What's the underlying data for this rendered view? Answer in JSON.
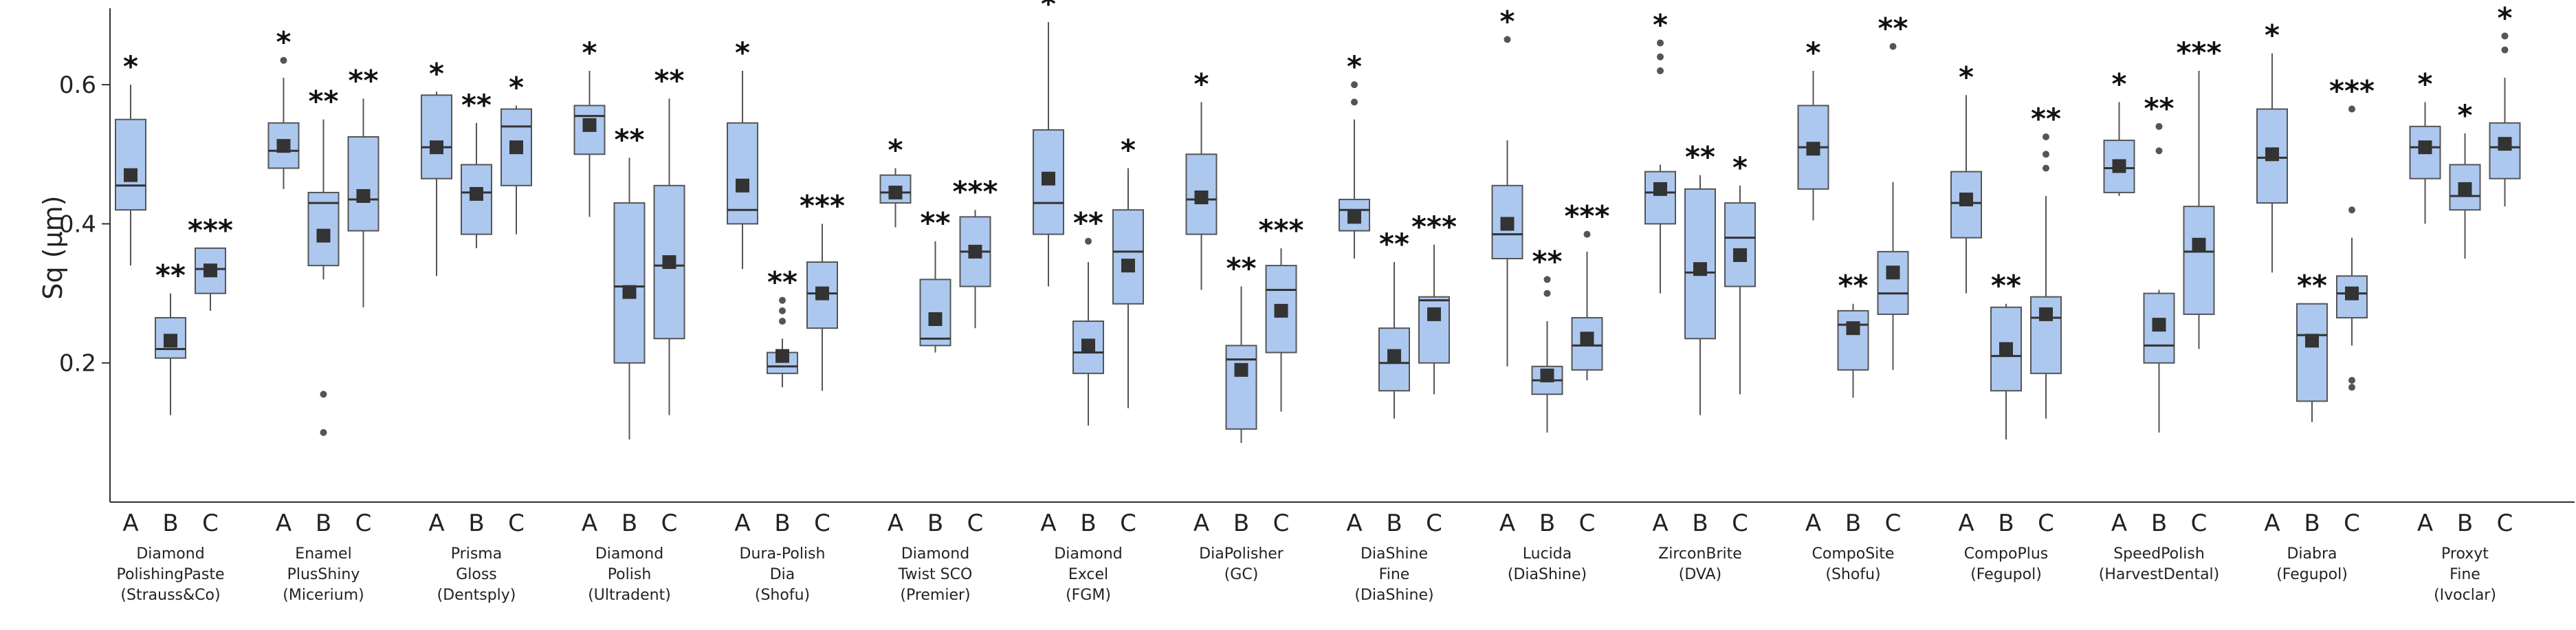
{
  "chart_data": {
    "type": "boxplot",
    "ylabel": "Sq (µm)",
    "ylim": [
      0,
      0.7
    ],
    "yticks": [
      "0.2",
      "0.4",
      "0.6"
    ],
    "yticks_values": [
      0.2,
      0.4,
      0.6
    ],
    "groups_labels": [
      "A",
      "B",
      "C"
    ],
    "colors": {
      "box": "#adc8ef",
      "box_edge": "#555555",
      "whisker": "#555555",
      "mean": "#333333",
      "outlier": "#555555",
      "axis": "#333333"
    },
    "products": [
      {
        "name": [
          "Diamond",
          "PolishingPaste",
          "(Strauss&Co)"
        ],
        "boxes": [
          {
            "min": 0.34,
            "q1": 0.42,
            "median": 0.455,
            "q3": 0.55,
            "max": 0.6,
            "mean": 0.47,
            "outliers": [],
            "sig": "*"
          },
          {
            "min": 0.125,
            "q1": 0.207,
            "median": 0.22,
            "q3": 0.265,
            "max": 0.3,
            "mean": 0.232,
            "outliers": [],
            "sig": "**"
          },
          {
            "min": 0.275,
            "q1": 0.3,
            "median": 0.335,
            "q3": 0.365,
            "max": 0.365,
            "mean": 0.333,
            "outliers": [],
            "sig": "***"
          }
        ]
      },
      {
        "name": [
          "Enamel",
          "PlusShiny",
          "(Micerium)"
        ],
        "boxes": [
          {
            "min": 0.45,
            "q1": 0.48,
            "median": 0.505,
            "q3": 0.545,
            "max": 0.61,
            "mean": 0.512,
            "outliers": [
              0.635
            ],
            "sig": "*"
          },
          {
            "min": 0.32,
            "q1": 0.34,
            "median": 0.43,
            "q3": 0.445,
            "max": 0.55,
            "mean": 0.383,
            "outliers": [
              0.155,
              0.1
            ],
            "sig": "**"
          },
          {
            "min": 0.28,
            "q1": 0.39,
            "median": 0.435,
            "q3": 0.525,
            "max": 0.58,
            "mean": 0.44,
            "outliers": [],
            "sig": "**"
          }
        ]
      },
      {
        "name": [
          "Prisma",
          "Gloss",
          "(Dentsply)"
        ],
        "boxes": [
          {
            "min": 0.325,
            "q1": 0.465,
            "median": 0.51,
            "q3": 0.585,
            "max": 0.59,
            "mean": 0.51,
            "outliers": [],
            "sig": "*"
          },
          {
            "min": 0.365,
            "q1": 0.385,
            "median": 0.445,
            "q3": 0.485,
            "max": 0.545,
            "mean": 0.443,
            "outliers": [],
            "sig": "**"
          },
          {
            "min": 0.385,
            "q1": 0.455,
            "median": 0.54,
            "q3": 0.565,
            "max": 0.57,
            "mean": 0.51,
            "outliers": [],
            "sig": "*"
          }
        ]
      },
      {
        "name": [
          "Diamond",
          "Polish",
          "(Ultradent)"
        ],
        "boxes": [
          {
            "min": 0.41,
            "q1": 0.5,
            "median": 0.555,
            "q3": 0.57,
            "max": 0.62,
            "mean": 0.542,
            "outliers": [],
            "sig": "*"
          },
          {
            "min": 0.09,
            "q1": 0.2,
            "median": 0.31,
            "q3": 0.43,
            "max": 0.495,
            "mean": 0.302,
            "outliers": [],
            "sig": "**"
          },
          {
            "min": 0.125,
            "q1": 0.235,
            "median": 0.34,
            "q3": 0.455,
            "max": 0.58,
            "mean": 0.345,
            "outliers": [],
            "sig": "**"
          }
        ]
      },
      {
        "name": [
          "Dura-Polish",
          "Dia",
          "(Shofu)"
        ],
        "boxes": [
          {
            "min": 0.335,
            "q1": 0.4,
            "median": 0.42,
            "q3": 0.545,
            "max": 0.62,
            "mean": 0.455,
            "outliers": [],
            "sig": "*"
          },
          {
            "min": 0.165,
            "q1": 0.185,
            "median": 0.195,
            "q3": 0.215,
            "max": 0.235,
            "mean": 0.21,
            "outliers": [
              0.26,
              0.275,
              0.29
            ],
            "sig": "**"
          },
          {
            "min": 0.16,
            "q1": 0.25,
            "median": 0.3,
            "q3": 0.345,
            "max": 0.4,
            "mean": 0.3,
            "outliers": [],
            "sig": "***"
          }
        ]
      },
      {
        "name": [
          "Diamond",
          "Twist SCO",
          "(Premier)"
        ],
        "boxes": [
          {
            "min": 0.395,
            "q1": 0.43,
            "median": 0.445,
            "q3": 0.47,
            "max": 0.48,
            "mean": 0.445,
            "outliers": [],
            "sig": "*"
          },
          {
            "min": 0.215,
            "q1": 0.225,
            "median": 0.235,
            "q3": 0.32,
            "max": 0.375,
            "mean": 0.263,
            "outliers": [],
            "sig": "**"
          },
          {
            "min": 0.25,
            "q1": 0.31,
            "median": 0.36,
            "q3": 0.41,
            "max": 0.42,
            "mean": 0.36,
            "outliers": [],
            "sig": "***"
          }
        ]
      },
      {
        "name": [
          "Diamond",
          "Excel",
          "(FGM)"
        ],
        "boxes": [
          {
            "min": 0.31,
            "q1": 0.385,
            "median": 0.43,
            "q3": 0.535,
            "max": 0.69,
            "mean": 0.465,
            "outliers": [],
            "sig": "*"
          },
          {
            "min": 0.11,
            "q1": 0.185,
            "median": 0.215,
            "q3": 0.26,
            "max": 0.345,
            "mean": 0.225,
            "outliers": [
              0.375
            ],
            "sig": "**"
          },
          {
            "min": 0.135,
            "q1": 0.285,
            "median": 0.36,
            "q3": 0.42,
            "max": 0.48,
            "mean": 0.34,
            "outliers": [],
            "sig": "*"
          }
        ]
      },
      {
        "name": [
          "DiaPolisher",
          "(GC)"
        ],
        "boxes": [
          {
            "min": 0.305,
            "q1": 0.385,
            "median": 0.435,
            "q3": 0.5,
            "max": 0.575,
            "mean": 0.438,
            "outliers": [],
            "sig": "*"
          },
          {
            "min": 0.085,
            "q1": 0.105,
            "median": 0.205,
            "q3": 0.225,
            "max": 0.31,
            "mean": 0.19,
            "outliers": [],
            "sig": "**"
          },
          {
            "min": 0.13,
            "q1": 0.215,
            "median": 0.305,
            "q3": 0.34,
            "max": 0.365,
            "mean": 0.275,
            "outliers": [],
            "sig": "***"
          }
        ]
      },
      {
        "name": [
          "DiaShine",
          "Fine",
          "(DiaShine)"
        ],
        "boxes": [
          {
            "min": 0.35,
            "q1": 0.39,
            "median": 0.42,
            "q3": 0.435,
            "max": 0.55,
            "mean": 0.41,
            "outliers": [
              0.575,
              0.6
            ],
            "sig": "*"
          },
          {
            "min": 0.12,
            "q1": 0.16,
            "median": 0.2,
            "q3": 0.25,
            "max": 0.345,
            "mean": 0.21,
            "outliers": [],
            "sig": "**"
          },
          {
            "min": 0.155,
            "q1": 0.2,
            "median": 0.29,
            "q3": 0.295,
            "max": 0.37,
            "mean": 0.27,
            "outliers": [],
            "sig": "***"
          }
        ]
      },
      {
        "name": [
          "Lucida",
          "(DiaShine)"
        ],
        "boxes": [
          {
            "min": 0.195,
            "q1": 0.35,
            "median": 0.385,
            "q3": 0.455,
            "max": 0.52,
            "mean": 0.4,
            "outliers": [
              0.665
            ],
            "sig": "*"
          },
          {
            "min": 0.1,
            "q1": 0.155,
            "median": 0.175,
            "q3": 0.195,
            "max": 0.26,
            "mean": 0.182,
            "outliers": [
              0.3,
              0.32
            ],
            "sig": "**"
          },
          {
            "min": 0.175,
            "q1": 0.19,
            "median": 0.225,
            "q3": 0.265,
            "max": 0.36,
            "mean": 0.235,
            "outliers": [
              0.385
            ],
            "sig": "***"
          }
        ]
      },
      {
        "name": [
          "ZirconBrite",
          "(DVA)"
        ],
        "boxes": [
          {
            "min": 0.3,
            "q1": 0.4,
            "median": 0.445,
            "q3": 0.475,
            "max": 0.485,
            "mean": 0.45,
            "outliers": [
              0.62,
              0.64,
              0.66
            ],
            "sig": "*"
          },
          {
            "min": 0.125,
            "q1": 0.235,
            "median": 0.33,
            "q3": 0.45,
            "max": 0.47,
            "mean": 0.335,
            "outliers": [],
            "sig": "**"
          },
          {
            "min": 0.155,
            "q1": 0.31,
            "median": 0.38,
            "q3": 0.43,
            "max": 0.455,
            "mean": 0.355,
            "outliers": [],
            "sig": "*"
          }
        ]
      },
      {
        "name": [
          "CompoSite",
          "(Shofu)"
        ],
        "boxes": [
          {
            "min": 0.405,
            "q1": 0.45,
            "median": 0.51,
            "q3": 0.57,
            "max": 0.62,
            "mean": 0.508,
            "outliers": [],
            "sig": "*"
          },
          {
            "min": 0.15,
            "q1": 0.19,
            "median": 0.255,
            "q3": 0.275,
            "max": 0.285,
            "mean": 0.25,
            "outliers": [],
            "sig": "**"
          },
          {
            "min": 0.19,
            "q1": 0.27,
            "median": 0.3,
            "q3": 0.36,
            "max": 0.46,
            "mean": 0.33,
            "outliers": [
              0.655
            ],
            "sig": "**"
          }
        ]
      },
      {
        "name": [
          "CompoPlus",
          "(Fegupol)"
        ],
        "boxes": [
          {
            "min": 0.3,
            "q1": 0.38,
            "median": 0.43,
            "q3": 0.475,
            "max": 0.585,
            "mean": 0.435,
            "outliers": [],
            "sig": "*"
          },
          {
            "min": 0.09,
            "q1": 0.16,
            "median": 0.21,
            "q3": 0.28,
            "max": 0.285,
            "mean": 0.22,
            "outliers": [],
            "sig": "**"
          },
          {
            "min": 0.12,
            "q1": 0.185,
            "median": 0.265,
            "q3": 0.295,
            "max": 0.44,
            "mean": 0.27,
            "outliers": [
              0.48,
              0.5,
              0.525
            ],
            "sig": "**"
          }
        ]
      },
      {
        "name": [
          "SpeedPolish",
          "(HarvestDental)"
        ],
        "boxes": [
          {
            "min": 0.44,
            "q1": 0.445,
            "median": 0.48,
            "q3": 0.52,
            "max": 0.575,
            "mean": 0.483,
            "outliers": [],
            "sig": "*"
          },
          {
            "min": 0.1,
            "q1": 0.2,
            "median": 0.225,
            "q3": 0.3,
            "max": 0.305,
            "mean": 0.255,
            "outliers": [
              0.505,
              0.54
            ],
            "sig": "**"
          },
          {
            "min": 0.22,
            "q1": 0.27,
            "median": 0.36,
            "q3": 0.425,
            "max": 0.62,
            "mean": 0.37,
            "outliers": [],
            "sig": "***"
          }
        ]
      },
      {
        "name": [
          "Diabra",
          "(Fegupol)"
        ],
        "boxes": [
          {
            "min": 0.33,
            "q1": 0.43,
            "median": 0.495,
            "q3": 0.565,
            "max": 0.645,
            "mean": 0.5,
            "outliers": [],
            "sig": "*"
          },
          {
            "min": 0.115,
            "q1": 0.145,
            "median": 0.24,
            "q3": 0.285,
            "max": 0.285,
            "mean": 0.232,
            "outliers": [],
            "sig": "**"
          },
          {
            "min": 0.225,
            "q1": 0.265,
            "median": 0.3,
            "q3": 0.325,
            "max": 0.38,
            "mean": 0.3,
            "outliers": [
              0.42,
              0.565,
              0.175,
              0.165
            ],
            "sig": "***"
          }
        ]
      },
      {
        "name": [
          "Proxyt",
          "Fine",
          "(Ivoclar)"
        ],
        "boxes": [
          {
            "min": 0.4,
            "q1": 0.465,
            "median": 0.51,
            "q3": 0.54,
            "max": 0.575,
            "mean": 0.51,
            "outliers": [],
            "sig": "*"
          },
          {
            "min": 0.35,
            "q1": 0.42,
            "median": 0.44,
            "q3": 0.485,
            "max": 0.53,
            "mean": 0.45,
            "outliers": [],
            "sig": "*"
          },
          {
            "min": 0.425,
            "q1": 0.465,
            "median": 0.51,
            "q3": 0.545,
            "max": 0.61,
            "mean": 0.515,
            "outliers": [
              0.65,
              0.67
            ],
            "sig": "*"
          }
        ]
      }
    ]
  }
}
